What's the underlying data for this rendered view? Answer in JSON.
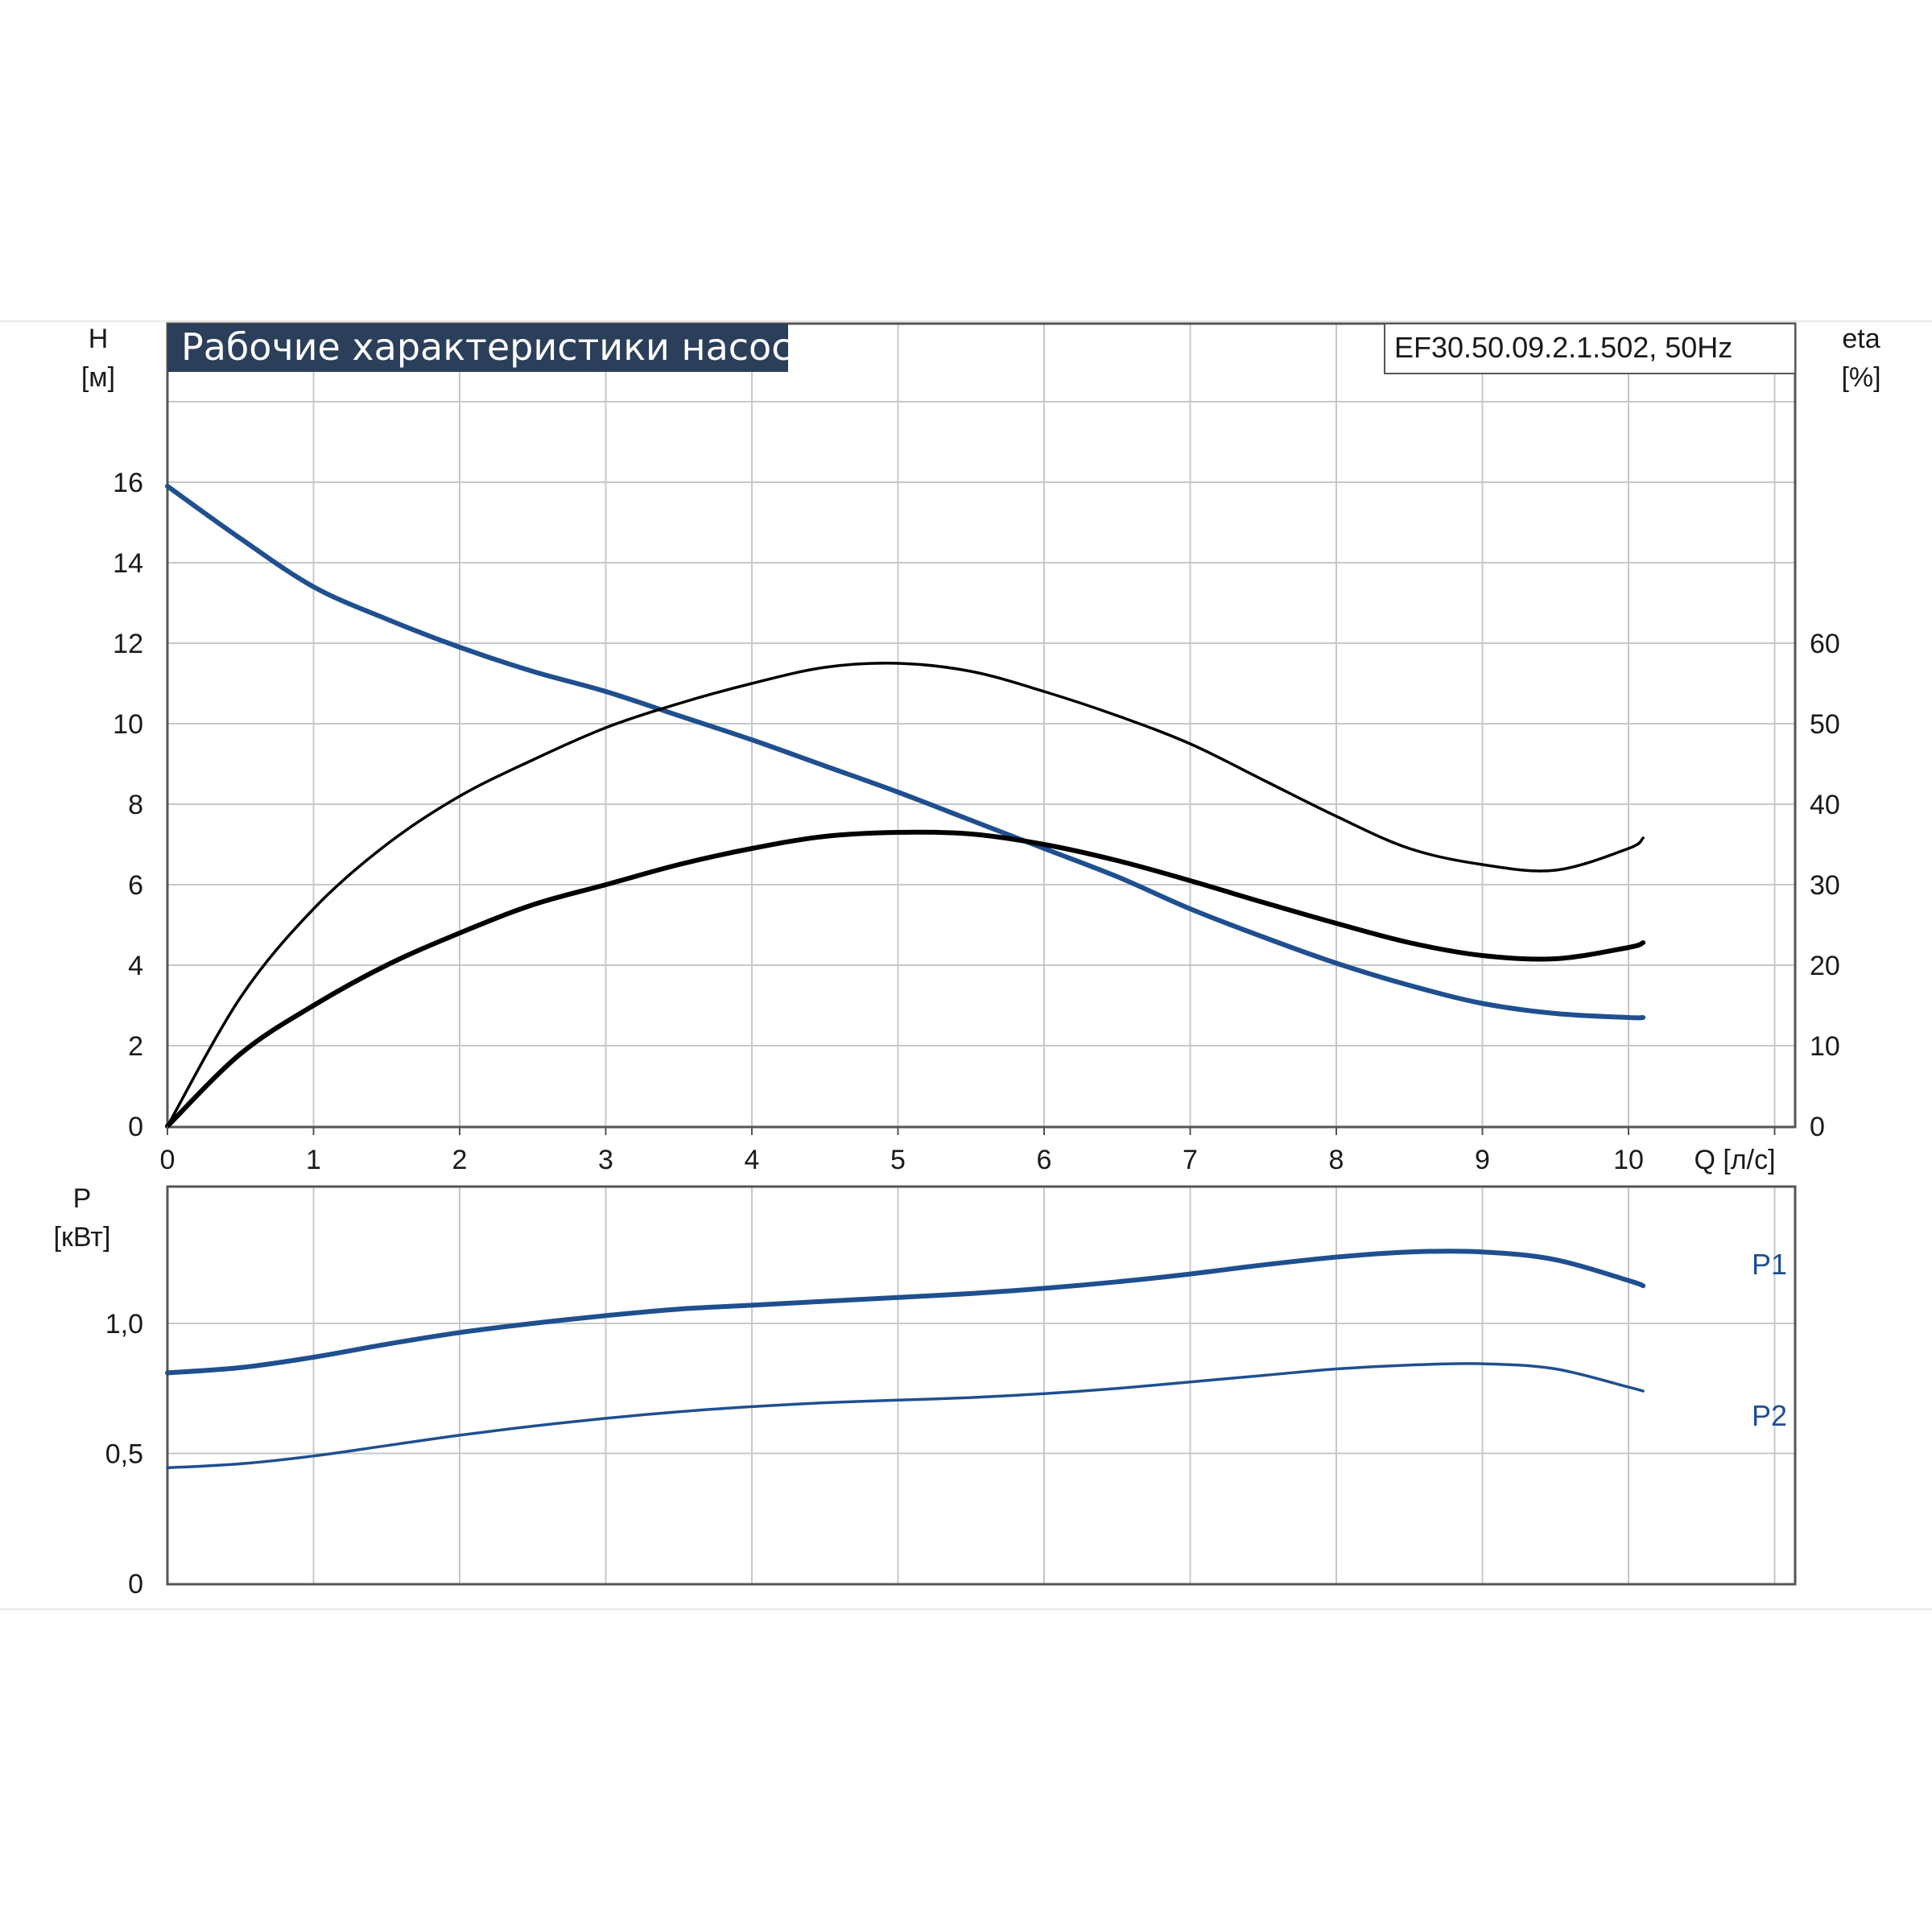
{
  "chart_data": [
    {
      "type": "line",
      "title": "Рабочие характеристики насоса",
      "model": "EF30.50.09.2.1.502, 50Hz",
      "xlabel": "Q [л/с]",
      "ylabel_left": [
        "H",
        "[м]"
      ],
      "ylabel_right": [
        "eta",
        "[%]"
      ],
      "xlim": [
        0,
        11
      ],
      "ylim_left": [
        0,
        18
      ],
      "ylim_right": [
        0,
        90
      ],
      "x_ticks": [
        "0",
        "1",
        "2",
        "3",
        "4",
        "5",
        "6",
        "7",
        "8",
        "9",
        "10"
      ],
      "y_left_ticks": [
        "0",
        "2",
        "4",
        "6",
        "8",
        "10",
        "12",
        "14",
        "16"
      ],
      "y_right_ticks": [
        "0",
        "10",
        "20",
        "30",
        "40",
        "50",
        "60"
      ],
      "grid": true,
      "series": [
        {
          "axis": "left",
          "color": "#1f4f8f",
          "x": [
            0,
            0.5,
            1,
            1.5,
            2,
            2.5,
            3,
            3.5,
            4,
            4.5,
            5,
            5.5,
            6,
            6.5,
            7,
            7.5,
            8,
            8.5,
            9,
            9.5,
            10,
            10.1
          ],
          "values": [
            15.9,
            14.6,
            13.4,
            12.6,
            11.9,
            11.3,
            10.8,
            10.2,
            9.6,
            8.95,
            8.3,
            7.6,
            6.9,
            6.2,
            5.4,
            4.7,
            4.05,
            3.5,
            3.05,
            2.8,
            2.7,
            2.7
          ]
        },
        {
          "axis": "right",
          "color": "#000000",
          "x": [
            0,
            0.5,
            1,
            1.5,
            2,
            2.5,
            3,
            3.5,
            4,
            4.5,
            5,
            5.5,
            6,
            6.5,
            7,
            7.5,
            8,
            8.5,
            9,
            9.5,
            10,
            10.1
          ],
          "values": [
            0,
            16,
            27,
            35,
            41,
            45.5,
            49.5,
            52.5,
            55,
            57,
            57.5,
            56.5,
            54,
            51,
            47.5,
            43,
            38.5,
            34.5,
            32.5,
            31.8,
            34.5,
            35.8
          ]
        },
        {
          "axis": "right",
          "color": "#000000",
          "x": [
            0,
            0.5,
            1,
            1.5,
            2,
            2.5,
            3,
            3.5,
            4,
            4.5,
            5,
            5.5,
            6,
            6.5,
            7,
            7.5,
            8,
            8.5,
            9,
            9.5,
            10,
            10.1
          ],
          "values": [
            0,
            9,
            15,
            20,
            24,
            27.5,
            30,
            32.5,
            34.5,
            36,
            36.5,
            36.3,
            35,
            33,
            30.5,
            27.8,
            25.2,
            22.8,
            21.2,
            20.8,
            22.2,
            22.8
          ]
        }
      ]
    },
    {
      "type": "line",
      "xlim": [
        0,
        11
      ],
      "ylim": [
        0,
        1.5
      ],
      "ylabel": [
        "P",
        "[кВт]"
      ],
      "y_ticks": [
        "0",
        "0,5",
        "1,0"
      ],
      "grid": true,
      "series": [
        {
          "name": "P1",
          "color": "#1f4f8f",
          "x": [
            0,
            0.5,
            1,
            1.5,
            2,
            2.5,
            3,
            3.5,
            4,
            4.5,
            5,
            5.5,
            6,
            6.5,
            7,
            7.5,
            8,
            8.5,
            9,
            9.5,
            10,
            10.1
          ],
          "values": [
            0.81,
            0.83,
            0.87,
            0.92,
            0.965,
            1.0,
            1.03,
            1.055,
            1.07,
            1.085,
            1.1,
            1.115,
            1.135,
            1.16,
            1.19,
            1.225,
            1.255,
            1.275,
            1.275,
            1.245,
            1.165,
            1.145
          ]
        },
        {
          "name": "P2",
          "color": "#1f4f8f",
          "x": [
            0,
            0.5,
            1,
            1.5,
            2,
            2.5,
            3,
            3.5,
            4,
            4.5,
            5,
            5.5,
            6,
            6.5,
            7,
            7.5,
            8,
            8.5,
            9,
            9.5,
            10,
            10.1
          ],
          "values": [
            0.445,
            0.46,
            0.49,
            0.53,
            0.57,
            0.605,
            0.635,
            0.66,
            0.68,
            0.695,
            0.705,
            0.715,
            0.73,
            0.75,
            0.775,
            0.8,
            0.825,
            0.84,
            0.845,
            0.825,
            0.755,
            0.74
          ]
        }
      ]
    }
  ]
}
